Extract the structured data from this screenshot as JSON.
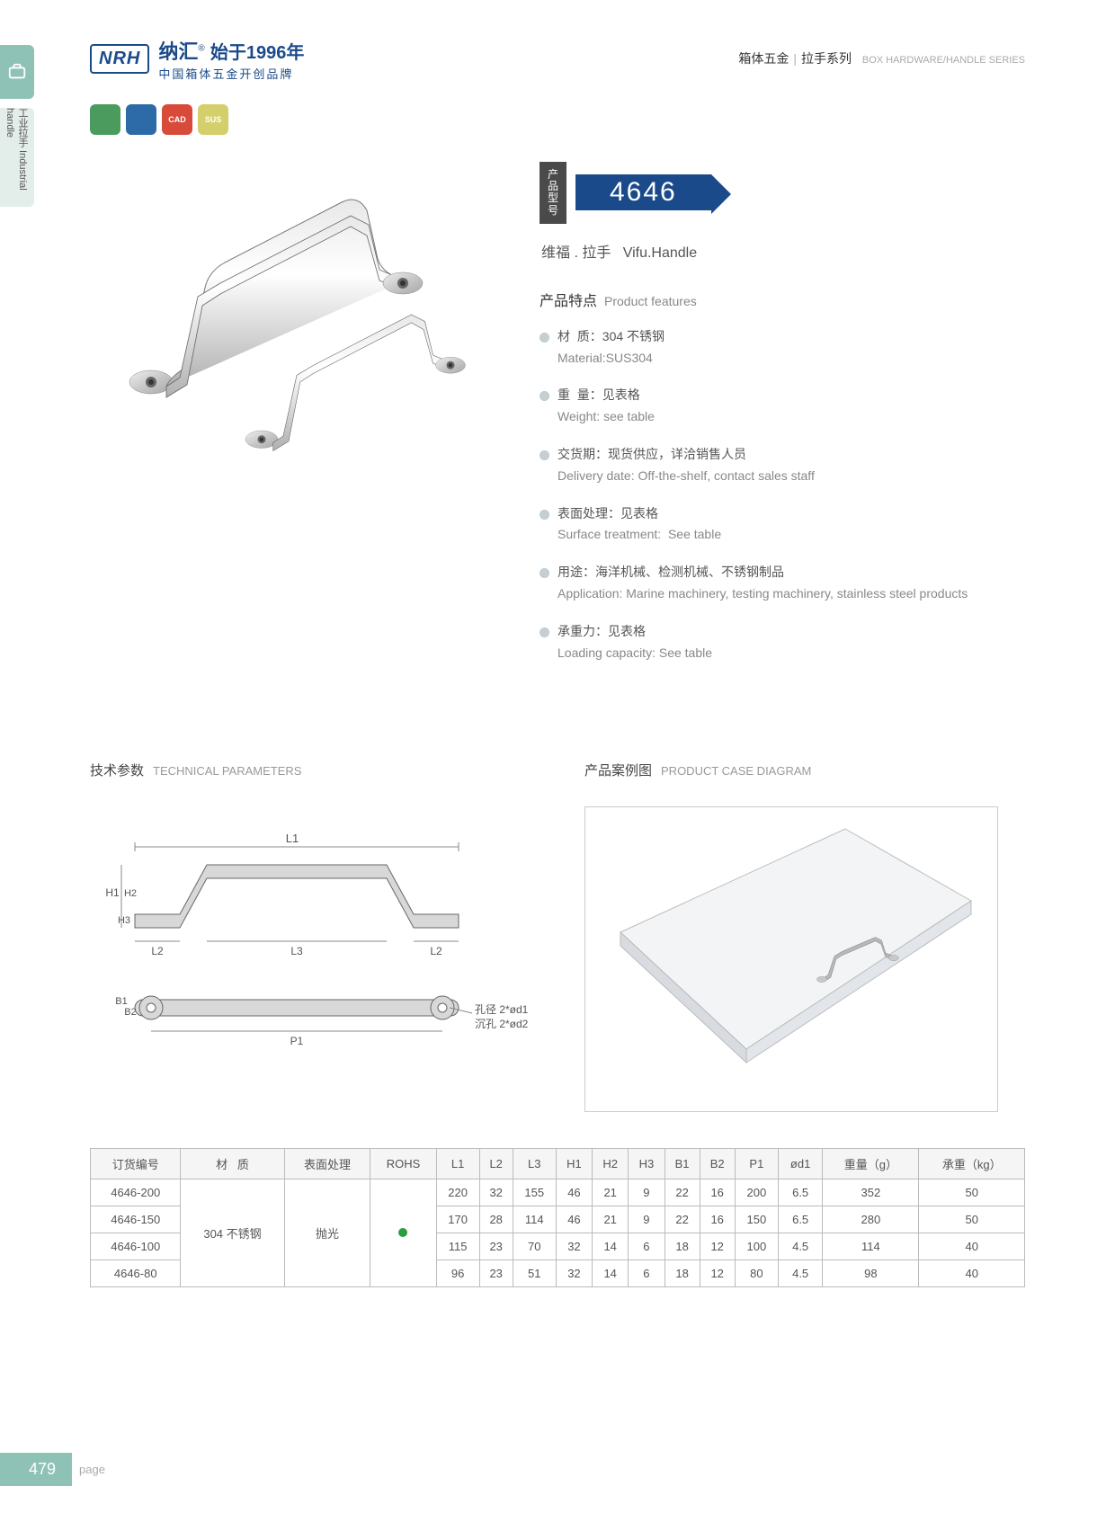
{
  "header": {
    "logo_brand": "NRH",
    "logo_cn": "纳汇",
    "logo_year": "始于1996年",
    "logo_sub": "中国箱体五金开创品牌",
    "right_cn1": "箱体五金",
    "right_cn2": "拉手系列",
    "right_en": "BOX HARDWARE/HANDLE SERIES"
  },
  "side_tab": "工业拉手 Industrial handle",
  "badges": [
    {
      "bg": "#4a9b5d",
      "text": ""
    },
    {
      "bg": "#2d6aa8",
      "text": ""
    },
    {
      "bg": "#d84a3a",
      "text": "CAD"
    },
    {
      "bg": "#d4cf6a",
      "text": "SUS"
    }
  ],
  "model": {
    "label": "产品型号",
    "number": "4646",
    "name_cn": "维福 . 拉手",
    "name_en": "Vifu.Handle"
  },
  "features": {
    "title_cn": "产品特点",
    "title_en": "Product features",
    "items": [
      {
        "cn": "材  质：304 不锈钢",
        "en": "Material:SUS304"
      },
      {
        "cn": "重  量：见表格",
        "en": "Weight: see table"
      },
      {
        "cn": "交货期：现货供应，详洽销售人员",
        "en": "Delivery date: Off-the-shelf, contact sales staff"
      },
      {
        "cn": "表面处理：见表格",
        "en": "Surface treatment:  See table"
      },
      {
        "cn": "用途：海洋机械、检测机械、不锈钢制品",
        "en": "Application: Marine machinery, testing machinery, stainless steel products"
      },
      {
        "cn": "承重力：见表格",
        "en": "Loading capacity: See table"
      }
    ]
  },
  "sections": {
    "tech_cn": "技术参数",
    "tech_en": "TECHNICAL PARAMETERS",
    "case_cn": "产品案例图",
    "case_en": "PRODUCT CASE DIAGRAM"
  },
  "diagram": {
    "labels": [
      "L1",
      "L2",
      "L3",
      "H1",
      "H2",
      "H3",
      "B1",
      "B2",
      "P1"
    ],
    "hole1": "孔径 2*ød1",
    "hole2": "沉孔 2*ød2"
  },
  "table": {
    "headers": [
      "订货编号",
      "材   质",
      "表面处理",
      "ROHS",
      "L1",
      "L2",
      "L3",
      "H1",
      "H2",
      "H3",
      "B1",
      "B2",
      "P1",
      "ød1",
      "重量（g）",
      "承重（kg）"
    ],
    "material": "304 不锈钢",
    "surface": "抛光",
    "rows": [
      {
        "code": "4646-200",
        "L1": "220",
        "L2": "32",
        "L3": "155",
        "H1": "46",
        "H2": "21",
        "H3": "9",
        "B1": "22",
        "B2": "16",
        "P1": "200",
        "od1": "6.5",
        "weight": "352",
        "load": "50"
      },
      {
        "code": "4646-150",
        "L1": "170",
        "L2": "28",
        "L3": "114",
        "H1": "46",
        "H2": "21",
        "H3": "9",
        "B1": "22",
        "B2": "16",
        "P1": "150",
        "od1": "6.5",
        "weight": "280",
        "load": "50"
      },
      {
        "code": "4646-100",
        "L1": "115",
        "L2": "23",
        "L3": "70",
        "H1": "32",
        "H2": "14",
        "H3": "6",
        "B1": "18",
        "B2": "12",
        "P1": "100",
        "od1": "4.5",
        "weight": "114",
        "load": "40"
      },
      {
        "code": "4646-80",
        "L1": "96",
        "L2": "23",
        "L3": "51",
        "H1": "32",
        "H2": "14",
        "H3": "6",
        "B1": "18",
        "B2": "12",
        "P1": "80",
        "od1": "4.5",
        "weight": "98",
        "load": "40"
      }
    ]
  },
  "page": {
    "num": "479",
    "label": "page"
  }
}
